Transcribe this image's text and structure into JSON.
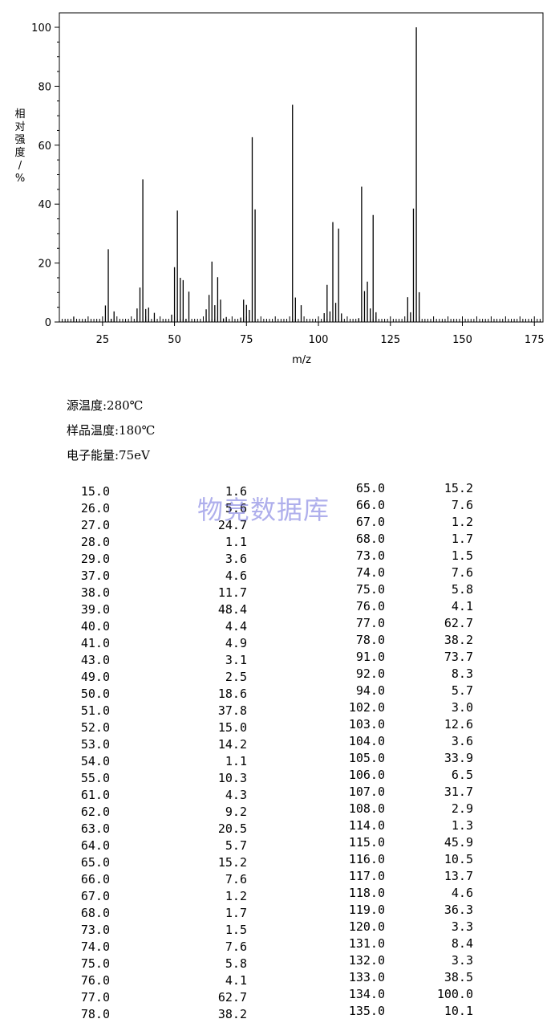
{
  "chart_data": {
    "type": "bar",
    "xlabel": "m/z",
    "ylabel": "相对强度/%",
    "xlim": [
      10,
      178
    ],
    "ylim": [
      0,
      100
    ],
    "xticks": [
      25,
      50,
      75,
      100,
      125,
      150,
      175
    ],
    "yticks": [
      0,
      20,
      40,
      60,
      80,
      100
    ],
    "points": [
      {
        "mz": 15,
        "i": 1.6
      },
      {
        "mz": 26,
        "i": 5.6
      },
      {
        "mz": 27,
        "i": 24.7
      },
      {
        "mz": 28,
        "i": 1.1
      },
      {
        "mz": 29,
        "i": 3.6
      },
      {
        "mz": 37,
        "i": 4.6
      },
      {
        "mz": 38,
        "i": 11.7
      },
      {
        "mz": 39,
        "i": 48.4
      },
      {
        "mz": 40,
        "i": 4.4
      },
      {
        "mz": 41,
        "i": 4.9
      },
      {
        "mz": 43,
        "i": 3.1
      },
      {
        "mz": 49,
        "i": 2.5
      },
      {
        "mz": 50,
        "i": 18.6
      },
      {
        "mz": 51,
        "i": 37.8
      },
      {
        "mz": 52,
        "i": 15.0
      },
      {
        "mz": 53,
        "i": 14.2
      },
      {
        "mz": 54,
        "i": 1.1
      },
      {
        "mz": 55,
        "i": 10.3
      },
      {
        "mz": 61,
        "i": 4.3
      },
      {
        "mz": 62,
        "i": 9.2
      },
      {
        "mz": 63,
        "i": 20.5
      },
      {
        "mz": 64,
        "i": 5.7
      },
      {
        "mz": 65,
        "i": 15.2
      },
      {
        "mz": 66,
        "i": 7.6
      },
      {
        "mz": 67,
        "i": 1.2
      },
      {
        "mz": 68,
        "i": 1.7
      },
      {
        "mz": 73,
        "i": 1.5
      },
      {
        "mz": 74,
        "i": 7.6
      },
      {
        "mz": 75,
        "i": 5.8
      },
      {
        "mz": 76,
        "i": 4.1
      },
      {
        "mz": 77,
        "i": 62.7
      },
      {
        "mz": 78,
        "i": 38.2
      },
      {
        "mz": 91,
        "i": 73.7
      },
      {
        "mz": 92,
        "i": 8.3
      },
      {
        "mz": 94,
        "i": 5.7
      },
      {
        "mz": 102,
        "i": 3.0
      },
      {
        "mz": 103,
        "i": 12.6
      },
      {
        "mz": 104,
        "i": 3.6
      },
      {
        "mz": 105,
        "i": 33.9
      },
      {
        "mz": 106,
        "i": 6.5
      },
      {
        "mz": 107,
        "i": 31.7
      },
      {
        "mz": 108,
        "i": 2.9
      },
      {
        "mz": 114,
        "i": 1.3
      },
      {
        "mz": 115,
        "i": 45.9
      },
      {
        "mz": 116,
        "i": 10.5
      },
      {
        "mz": 117,
        "i": 13.7
      },
      {
        "mz": 118,
        "i": 4.6
      },
      {
        "mz": 119,
        "i": 36.3
      },
      {
        "mz": 120,
        "i": 3.3
      },
      {
        "mz": 131,
        "i": 8.4
      },
      {
        "mz": 132,
        "i": 3.3
      },
      {
        "mz": 133,
        "i": 38.5
      },
      {
        "mz": 134,
        "i": 100.0
      },
      {
        "mz": 135,
        "i": 10.1
      }
    ]
  },
  "conditions": {
    "source_temp": "源温度:280℃",
    "sample_temp": "样品温度:180℃",
    "electron_energy": "电子能量:75eV"
  },
  "watermark": "物竞数据库",
  "peak_table": {
    "left": [
      [
        "15.0",
        "1.6"
      ],
      [
        "26.0",
        "5.6"
      ],
      [
        "27.0",
        "24.7"
      ],
      [
        "28.0",
        "1.1"
      ],
      [
        "29.0",
        "3.6"
      ],
      [
        "37.0",
        "4.6"
      ],
      [
        "38.0",
        "11.7"
      ],
      [
        "39.0",
        "48.4"
      ],
      [
        "40.0",
        "4.4"
      ],
      [
        "41.0",
        "4.9"
      ],
      [
        "43.0",
        "3.1"
      ],
      [
        "49.0",
        "2.5"
      ],
      [
        "50.0",
        "18.6"
      ],
      [
        "51.0",
        "37.8"
      ],
      [
        "52.0",
        "15.0"
      ],
      [
        "53.0",
        "14.2"
      ],
      [
        "54.0",
        "1.1"
      ],
      [
        "55.0",
        "10.3"
      ],
      [
        "61.0",
        "4.3"
      ],
      [
        "62.0",
        "9.2"
      ],
      [
        "63.0",
        "20.5"
      ],
      [
        "64.0",
        "5.7"
      ],
      [
        "65.0",
        "15.2"
      ],
      [
        "66.0",
        "7.6"
      ],
      [
        "67.0",
        "1.2"
      ],
      [
        "68.0",
        "1.7"
      ],
      [
        "73.0",
        "1.5"
      ],
      [
        "74.0",
        "7.6"
      ],
      [
        "75.0",
        "5.8"
      ],
      [
        "76.0",
        "4.1"
      ],
      [
        "77.0",
        "62.7"
      ],
      [
        "78.0",
        "38.2"
      ]
    ],
    "right": [
      [
        "65.0",
        "15.2"
      ],
      [
        "66.0",
        "7.6"
      ],
      [
        "67.0",
        "1.2"
      ],
      [
        "68.0",
        "1.7"
      ],
      [
        "73.0",
        "1.5"
      ],
      [
        "74.0",
        "7.6"
      ],
      [
        "75.0",
        "5.8"
      ],
      [
        "76.0",
        "4.1"
      ],
      [
        "77.0",
        "62.7"
      ],
      [
        "78.0",
        "38.2"
      ],
      [
        "91.0",
        "73.7"
      ],
      [
        "92.0",
        "8.3"
      ],
      [
        "94.0",
        "5.7"
      ],
      [
        "102.0",
        "3.0"
      ],
      [
        "103.0",
        "12.6"
      ],
      [
        "104.0",
        "3.6"
      ],
      [
        "105.0",
        "33.9"
      ],
      [
        "106.0",
        "6.5"
      ],
      [
        "107.0",
        "31.7"
      ],
      [
        "108.0",
        "2.9"
      ],
      [
        "114.0",
        "1.3"
      ],
      [
        "115.0",
        "45.9"
      ],
      [
        "116.0",
        "10.5"
      ],
      [
        "117.0",
        "13.7"
      ],
      [
        "118.0",
        "4.6"
      ],
      [
        "119.0",
        "36.3"
      ],
      [
        "120.0",
        "3.3"
      ],
      [
        "131.0",
        "8.4"
      ],
      [
        "132.0",
        "3.3"
      ],
      [
        "133.0",
        "38.5"
      ],
      [
        "134.0",
        "100.0"
      ],
      [
        "135.0",
        "10.1"
      ]
    ]
  }
}
